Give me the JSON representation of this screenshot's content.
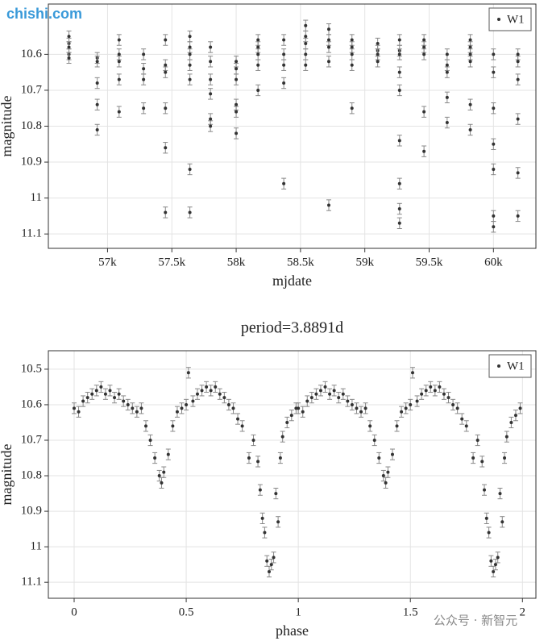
{
  "chart_data": [
    {
      "type": "scatter",
      "x_label": "mjdate",
      "y_label": "magnitude",
      "y_reversed": true,
      "grid": true,
      "legend": "upper right",
      "xlim": [
        56540,
        60330
      ],
      "ylim": [
        10.46,
        11.14
      ],
      "xticks": [
        {
          "value": 57000,
          "label": "57k"
        },
        {
          "value": 57500,
          "label": "57.5k"
        },
        {
          "value": 58000,
          "label": "58k"
        },
        {
          "value": 58500,
          "label": "58.5k"
        },
        {
          "value": 59000,
          "label": "59k"
        },
        {
          "value": 59500,
          "label": "59.5k"
        },
        {
          "value": 60000,
          "label": "60k"
        }
      ],
      "yticks": [
        10.6,
        10.7,
        10.8,
        10.9,
        11,
        11.1
      ],
      "series": [
        {
          "name": "W1",
          "color": "#333333",
          "error_color": "#888888",
          "error": 0.015,
          "x": [
            56700,
            56700,
            56700,
            56700,
            56700,
            56920,
            56920,
            56920,
            56920,
            56920,
            57090,
            57090,
            57090,
            57090,
            57090,
            57280,
            57280,
            57280,
            57280,
            57450,
            57450,
            57450,
            57450,
            57450,
            57450,
            57640,
            57640,
            57640,
            57640,
            57640,
            57640,
            57640,
            57800,
            57800,
            57800,
            57800,
            57800,
            57800,
            58000,
            58000,
            58000,
            58000,
            58000,
            58000,
            58170,
            58170,
            58170,
            58170,
            58170,
            58370,
            58370,
            58370,
            58370,
            58370,
            58540,
            58540,
            58540,
            58540,
            58540,
            58720,
            58720,
            58720,
            58720,
            58720,
            58900,
            58900,
            58900,
            58900,
            58900,
            59100,
            59100,
            59100,
            59100,
            59270,
            59270,
            59270,
            59270,
            59270,
            59270,
            59270,
            59270,
            59270,
            59460,
            59460,
            59460,
            59460,
            59460,
            59640,
            59640,
            59640,
            59640,
            59640,
            59820,
            59820,
            59820,
            59820,
            59820,
            59820,
            60000,
            60000,
            60000,
            60000,
            60000,
            60000,
            60000,
            60190,
            60190,
            60190,
            60190,
            60190,
            60190
          ],
          "values": [
            10.55,
            10.57,
            10.58,
            10.6,
            10.61,
            10.61,
            10.62,
            10.68,
            10.74,
            10.81,
            10.56,
            10.6,
            10.62,
            10.67,
            10.76,
            10.6,
            10.64,
            10.67,
            10.75,
            10.56,
            10.63,
            10.65,
            10.75,
            10.86,
            11.04,
            10.55,
            10.58,
            10.6,
            10.63,
            10.67,
            10.92,
            11.04,
            10.58,
            10.62,
            10.67,
            10.71,
            10.78,
            10.8,
            10.62,
            10.64,
            10.67,
            10.74,
            10.76,
            10.82,
            10.56,
            10.58,
            10.6,
            10.63,
            10.7,
            10.56,
            10.6,
            10.63,
            10.68,
            10.96,
            10.52,
            10.55,
            10.57,
            10.6,
            10.63,
            10.53,
            10.56,
            10.58,
            10.62,
            11.02,
            10.56,
            10.58,
            10.6,
            10.63,
            10.75,
            10.57,
            10.59,
            10.6,
            10.62,
            10.56,
            10.59,
            10.6,
            10.65,
            10.7,
            10.84,
            10.96,
            11.03,
            11.07,
            10.56,
            10.58,
            10.6,
            10.76,
            10.87,
            10.6,
            10.63,
            10.65,
            10.72,
            10.79,
            10.56,
            10.58,
            10.6,
            10.62,
            10.74,
            10.81,
            10.6,
            10.65,
            10.75,
            10.85,
            10.92,
            11.05,
            11.08,
            10.6,
            10.62,
            10.67,
            10.78,
            10.93,
            11.05
          ]
        }
      ]
    },
    {
      "type": "scatter",
      "title": "period=3.8891d",
      "x_label": "phase",
      "y_label": "magnitude",
      "y_reversed": true,
      "grid": true,
      "legend": "upper right",
      "xlim": [
        -0.115,
        2.06
      ],
      "ylim": [
        10.448,
        11.145
      ],
      "xticks": [
        0,
        0.5,
        1,
        1.5,
        2
      ],
      "yticks": [
        10.5,
        10.6,
        10.7,
        10.8,
        10.9,
        11,
        11.1
      ],
      "series": [
        {
          "name": "W1",
          "color": "#333333",
          "error_color": "#888888",
          "error": 0.015,
          "x": [
            0,
            0.02,
            0.04,
            0.06,
            0.08,
            0.1,
            0.12,
            0.14,
            0.16,
            0.18,
            0.2,
            0.22,
            0.24,
            0.26,
            0.28,
            0.3,
            0.32,
            0.34,
            0.36,
            0.38,
            0.39,
            0.4,
            0.42,
            0.44,
            0.46,
            0.48,
            0.5,
            0.51,
            0.53,
            0.55,
            0.57,
            0.59,
            0.61,
            0.63,
            0.65,
            0.67,
            0.69,
            0.71,
            0.73,
            0.75,
            0.78,
            0.8,
            0.82,
            0.83,
            0.84,
            0.85,
            0.86,
            0.87,
            0.88,
            0.89,
            0.9,
            0.91,
            0.92,
            0.93,
            0.95,
            0.97,
            0.99,
            1,
            1.02,
            1.04,
            1.06,
            1.08,
            1.1,
            1.12,
            1.14,
            1.16,
            1.18,
            1.2,
            1.22,
            1.24,
            1.26,
            1.28,
            1.3,
            1.32,
            1.34,
            1.36,
            1.38,
            1.39,
            1.4,
            1.42,
            1.44,
            1.46,
            1.48,
            1.5,
            1.51,
            1.53,
            1.55,
            1.57,
            1.59,
            1.61,
            1.63,
            1.65,
            1.67,
            1.69,
            1.71,
            1.73,
            1.75,
            1.78,
            1.8,
            1.82,
            1.83,
            1.84,
            1.85,
            1.86,
            1.87,
            1.88,
            1.89,
            1.9,
            1.91,
            1.92,
            1.93,
            1.95,
            1.97,
            1.99
          ],
          "values": [
            10.61,
            10.62,
            10.59,
            10.58,
            10.57,
            10.56,
            10.55,
            10.57,
            10.56,
            10.58,
            10.57,
            10.59,
            10.6,
            10.61,
            10.62,
            10.61,
            10.66,
            10.7,
            10.75,
            10.8,
            10.82,
            10.79,
            10.74,
            10.66,
            10.62,
            10.61,
            10.6,
            10.51,
            10.59,
            10.57,
            10.56,
            10.55,
            10.56,
            10.55,
            10.57,
            10.58,
            10.6,
            10.61,
            10.64,
            10.66,
            10.75,
            10.7,
            10.76,
            10.84,
            10.92,
            10.96,
            11.04,
            11.07,
            11.05,
            11.03,
            10.85,
            10.93,
            10.75,
            10.69,
            10.65,
            10.63,
            10.61,
            10.61,
            10.62,
            10.59,
            10.58,
            10.57,
            10.56,
            10.55,
            10.57,
            10.56,
            10.58,
            10.57,
            10.59,
            10.6,
            10.61,
            10.62,
            10.61,
            10.66,
            10.7,
            10.75,
            10.8,
            10.82,
            10.79,
            10.74,
            10.66,
            10.62,
            10.61,
            10.6,
            10.51,
            10.59,
            10.57,
            10.56,
            10.55,
            10.56,
            10.55,
            10.57,
            10.58,
            10.6,
            10.61,
            10.64,
            10.66,
            10.75,
            10.7,
            10.76,
            10.84,
            10.92,
            10.96,
            11.04,
            11.07,
            11.05,
            11.03,
            10.85,
            10.93,
            10.75,
            10.69,
            10.65,
            10.63,
            10.61
          ]
        }
      ]
    }
  ],
  "watermarks": {
    "top": "chishi.com",
    "bottom": "公众号 · 新智元"
  }
}
